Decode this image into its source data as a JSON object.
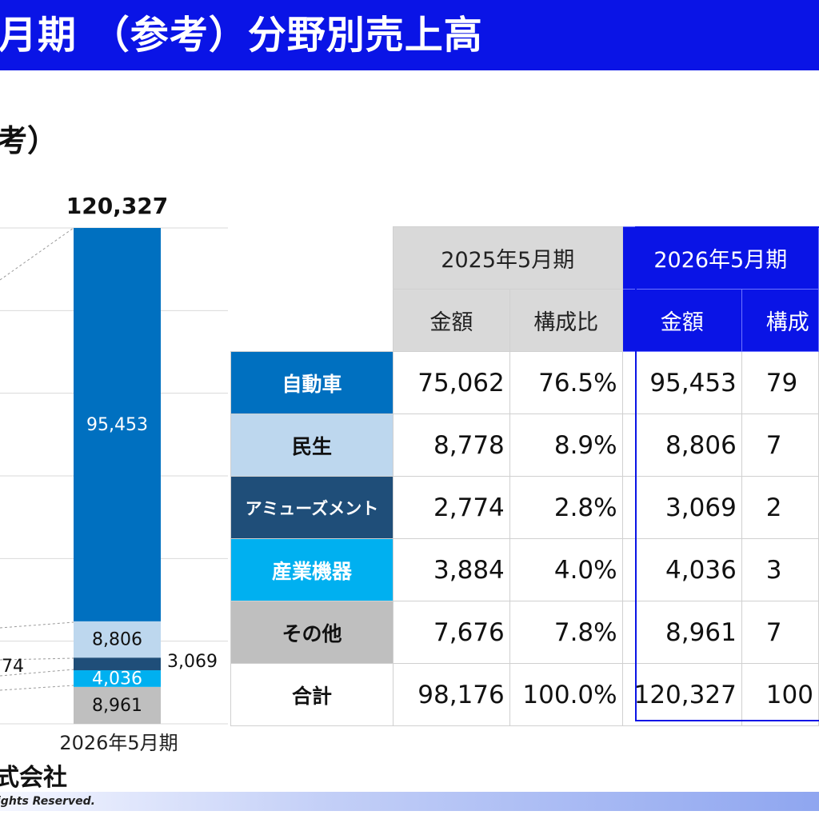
{
  "title": "月期 （参考）分野別売上高",
  "subtitle": "考）",
  "chart_data": {
    "type": "bar",
    "categories": [
      "2026年5月期"
    ],
    "total": 120327,
    "total_label": "120,327",
    "ylim": [
      0,
      120327
    ],
    "segments": [
      {
        "name": "その他",
        "value": 8961,
        "label": "8,961",
        "color": "#bfbfbf",
        "label_color": "#111111",
        "label_pos": "inside"
      },
      {
        "name": "産業機器",
        "value": 4036,
        "label": "4,036",
        "color": "#00b0f0",
        "label_color": "#ffffff",
        "label_pos": "inside"
      },
      {
        "name": "アミューズメント",
        "value": 3069,
        "label": "3,069",
        "color": "#1f4e79",
        "label_color": "#111111",
        "label_pos": "outside"
      },
      {
        "name": "民生",
        "value": 8806,
        "label": "8,806",
        "color": "#bdd7ee",
        "label_color": "#111111",
        "label_pos": "inside"
      },
      {
        "name": "自動車",
        "value": 95453,
        "label": "95,453",
        "color": "#0070c0",
        "label_color": "#ffffff",
        "label_pos": "inside"
      }
    ],
    "prev_partial_label": "74",
    "grid": true
  },
  "table": {
    "header_2025": "2025年5月期",
    "header_2026": "2026年5月期",
    "sub_amount": "金額",
    "sub_ratio": "構成比",
    "sub_ratio_partial": "構成",
    "rows": [
      {
        "category": "自動車",
        "amount_2025": "75,062",
        "ratio_2025": "76.5%",
        "amount_2026": "95,453",
        "ratio_2026": "79",
        "bg": "#0070c0",
        "fg": "#ffffff"
      },
      {
        "category": "民生",
        "amount_2025": "8,778",
        "ratio_2025": "8.9%",
        "amount_2026": "8,806",
        "ratio_2026": "7",
        "bg": "#bdd7ee",
        "fg": "#111111"
      },
      {
        "category": "アミューズメント",
        "amount_2025": "2,774",
        "ratio_2025": "2.8%",
        "amount_2026": "3,069",
        "ratio_2026": "2",
        "bg": "#1f4e79",
        "fg": "#ffffff"
      },
      {
        "category": "産業機器",
        "amount_2025": "3,884",
        "ratio_2025": "4.0%",
        "amount_2026": "4,036",
        "ratio_2026": "3",
        "bg": "#00b0f0",
        "fg": "#ffffff"
      },
      {
        "category": "その他",
        "amount_2025": "7,676",
        "ratio_2025": "7.8%",
        "amount_2026": "8,961",
        "ratio_2026": "7",
        "bg": "#bfbfbf",
        "fg": "#111111"
      },
      {
        "category": "合計",
        "amount_2025": "98,176",
        "ratio_2025": "100.0%",
        "amount_2026": "120,327",
        "ratio_2026": "100",
        "bg": "#ffffff",
        "fg": "#111111"
      }
    ]
  },
  "footer": {
    "company": "式会社",
    "copyright": "ights Reserved."
  },
  "colors": {
    "brand_blue": "#0a14e6"
  }
}
